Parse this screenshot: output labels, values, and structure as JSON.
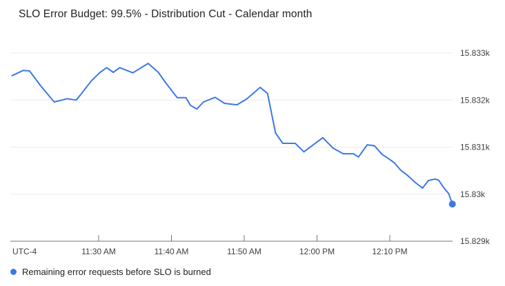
{
  "chart_data": {
    "type": "line",
    "title": "SLO Error Budget: 99.5% - Distribution Cut - Calendar month",
    "legend_position": "bottom-left",
    "grid": true,
    "x_axis": {
      "timezone_label": "UTC-4",
      "unit": "minutes after 11:00 AM (UTC-4)",
      "range": [
        18.0,
        78.8
      ],
      "ticks": [
        {
          "v": 30,
          "label": "11:30 AM"
        },
        {
          "v": 40,
          "label": "11:40 AM"
        },
        {
          "v": 50,
          "label": "11:50 AM"
        },
        {
          "v": 60,
          "label": "12:00 PM"
        },
        {
          "v": 70,
          "label": "12:10 PM"
        }
      ]
    },
    "y_axis": {
      "unit": "remaining error requests",
      "range": [
        15829,
        15833.2
      ],
      "ticks": [
        {
          "v": 15833,
          "label": "15.833k"
        },
        {
          "v": 15832,
          "label": "15.832k"
        },
        {
          "v": 15831,
          "label": "15.831k"
        },
        {
          "v": 15830,
          "label": "15.83k"
        },
        {
          "v": 15829,
          "label": "15.829k"
        }
      ]
    },
    "series": [
      {
        "name": "Remaining error requests before SLO is burned",
        "color": "#3b78e7",
        "end_dot": true,
        "points": [
          [
            18.1,
            15832.52
          ],
          [
            19.6,
            15832.63
          ],
          [
            20.5,
            15832.62
          ],
          [
            22.0,
            15832.31
          ],
          [
            23.9,
            15831.96
          ],
          [
            25.7,
            15832.03
          ],
          [
            26.9,
            15832.0
          ],
          [
            27.5,
            15832.11
          ],
          [
            29.0,
            15832.41
          ],
          [
            30.2,
            15832.59
          ],
          [
            31.1,
            15832.69
          ],
          [
            32.0,
            15832.59
          ],
          [
            32.9,
            15832.69
          ],
          [
            34.7,
            15832.58
          ],
          [
            36.8,
            15832.78
          ],
          [
            38.2,
            15832.59
          ],
          [
            39.2,
            15832.37
          ],
          [
            40.8,
            15832.05
          ],
          [
            42.0,
            15832.05
          ],
          [
            42.6,
            15831.89
          ],
          [
            43.5,
            15831.81
          ],
          [
            44.4,
            15831.96
          ],
          [
            46.0,
            15832.06
          ],
          [
            47.3,
            15831.93
          ],
          [
            49.0,
            15831.9
          ],
          [
            50.3,
            15832.02
          ],
          [
            51.3,
            15832.15
          ],
          [
            52.2,
            15832.27
          ],
          [
            53.2,
            15832.14
          ],
          [
            54.3,
            15831.3
          ],
          [
            55.3,
            15831.08
          ],
          [
            57.0,
            15831.08
          ],
          [
            58.2,
            15830.9
          ],
          [
            59.5,
            15831.05
          ],
          [
            60.8,
            15831.2
          ],
          [
            62.2,
            15830.98
          ],
          [
            63.6,
            15830.86
          ],
          [
            65.0,
            15830.86
          ],
          [
            65.7,
            15830.79
          ],
          [
            66.9,
            15831.05
          ],
          [
            67.9,
            15831.03
          ],
          [
            68.9,
            15830.85
          ],
          [
            69.7,
            15830.77
          ],
          [
            70.6,
            15830.67
          ],
          [
            71.5,
            15830.51
          ],
          [
            72.5,
            15830.39
          ],
          [
            73.4,
            15830.26
          ],
          [
            74.5,
            15830.13
          ],
          [
            75.3,
            15830.29
          ],
          [
            76.2,
            15830.32
          ],
          [
            76.7,
            15830.3
          ],
          [
            77.4,
            15830.14
          ],
          [
            78.1,
            15830.01
          ],
          [
            78.6,
            15829.79
          ]
        ]
      }
    ]
  }
}
